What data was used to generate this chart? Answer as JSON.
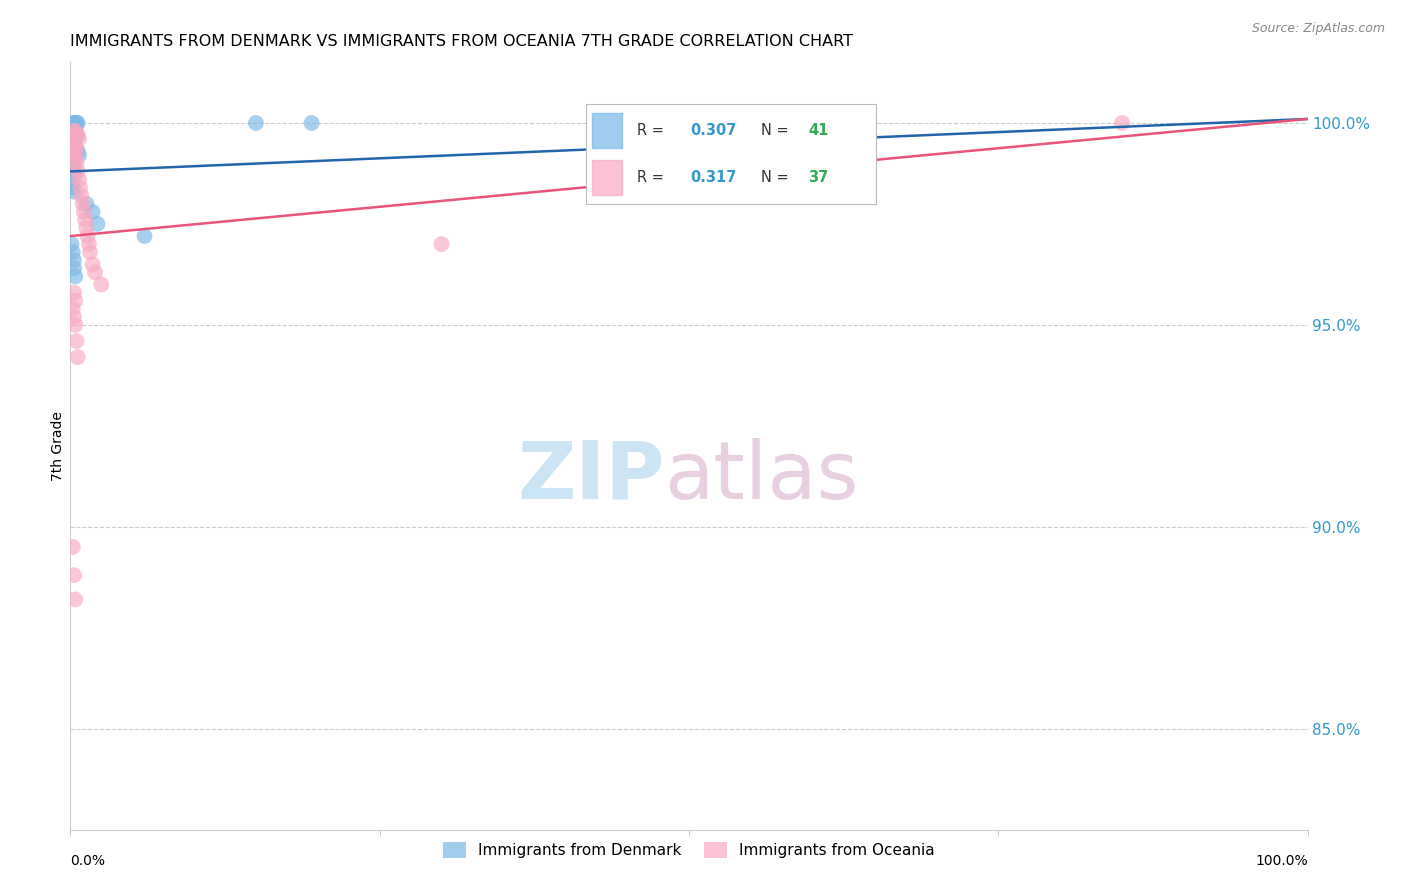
{
  "title": "IMMIGRANTS FROM DENMARK VS IMMIGRANTS FROM OCEANIA 7TH GRADE CORRELATION CHART",
  "source": "Source: ZipAtlas.com",
  "ylabel": "7th Grade",
  "r_denmark": 0.307,
  "n_denmark": 41,
  "r_oceania": 0.317,
  "n_oceania": 37,
  "color_denmark": "#7ab8e8",
  "color_oceania": "#f9a8c0",
  "color_denmark_line": "#2166ac",
  "color_oceania_line": "#e8547a",
  "color_r_value": "#3399cc",
  "color_n_value": "#33aa55",
  "ytick_labels": [
    "100.0%",
    "95.0%",
    "90.0%",
    "85.0%"
  ],
  "ytick_values": [
    1.0,
    0.95,
    0.9,
    0.85
  ],
  "xlim": [
    0.0,
    1.0
  ],
  "ylim": [
    0.825,
    1.015
  ],
  "dk_x": [
    0.002,
    0.003,
    0.004,
    0.005,
    0.006,
    0.002,
    0.003,
    0.004,
    0.002,
    0.003,
    0.004,
    0.005,
    0.002,
    0.003,
    0.004,
    0.001,
    0.002,
    0.003,
    0.004,
    0.005,
    0.006,
    0.007,
    0.002,
    0.003,
    0.001,
    0.002,
    0.003,
    0.001,
    0.002,
    0.003,
    0.013,
    0.018,
    0.022,
    0.06,
    0.15,
    0.195,
    0.001,
    0.002,
    0.003,
    0.003,
    0.004
  ],
  "dk_y": [
    1.0,
    1.0,
    1.0,
    1.0,
    1.0,
    0.999,
    0.999,
    0.999,
    0.998,
    0.998,
    0.998,
    0.997,
    0.997,
    0.997,
    0.996,
    0.995,
    0.995,
    0.994,
    0.994,
    0.993,
    0.993,
    0.992,
    0.99,
    0.99,
    0.989,
    0.988,
    0.987,
    0.985,
    0.984,
    0.983,
    0.98,
    0.978,
    0.975,
    0.972,
    1.0,
    1.0,
    0.97,
    0.968,
    0.966,
    0.964,
    0.962
  ],
  "oc_x": [
    0.003,
    0.004,
    0.005,
    0.006,
    0.007,
    0.003,
    0.004,
    0.005,
    0.003,
    0.004,
    0.005,
    0.006,
    0.007,
    0.008,
    0.009,
    0.01,
    0.011,
    0.012,
    0.013,
    0.014,
    0.015,
    0.016,
    0.018,
    0.02,
    0.025,
    0.3,
    0.85,
    0.003,
    0.004,
    0.002,
    0.003,
    0.004,
    0.005,
    0.006,
    0.002,
    0.003,
    0.004
  ],
  "oc_y": [
    0.998,
    0.998,
    0.997,
    0.997,
    0.996,
    0.995,
    0.994,
    0.993,
    0.992,
    0.991,
    0.99,
    0.988,
    0.986,
    0.984,
    0.982,
    0.98,
    0.978,
    0.976,
    0.974,
    0.972,
    0.97,
    0.968,
    0.965,
    0.963,
    0.96,
    0.97,
    1.0,
    0.958,
    0.956,
    0.954,
    0.952,
    0.95,
    0.946,
    0.942,
    0.895,
    0.888,
    0.882
  ],
  "dk_line_x0": 0.0,
  "dk_line_x1": 1.0,
  "dk_line_y0": 0.988,
  "dk_line_y1": 1.001,
  "oc_line_x0": 0.0,
  "oc_line_x1": 1.0,
  "oc_line_y0": 0.972,
  "oc_line_y1": 1.001
}
